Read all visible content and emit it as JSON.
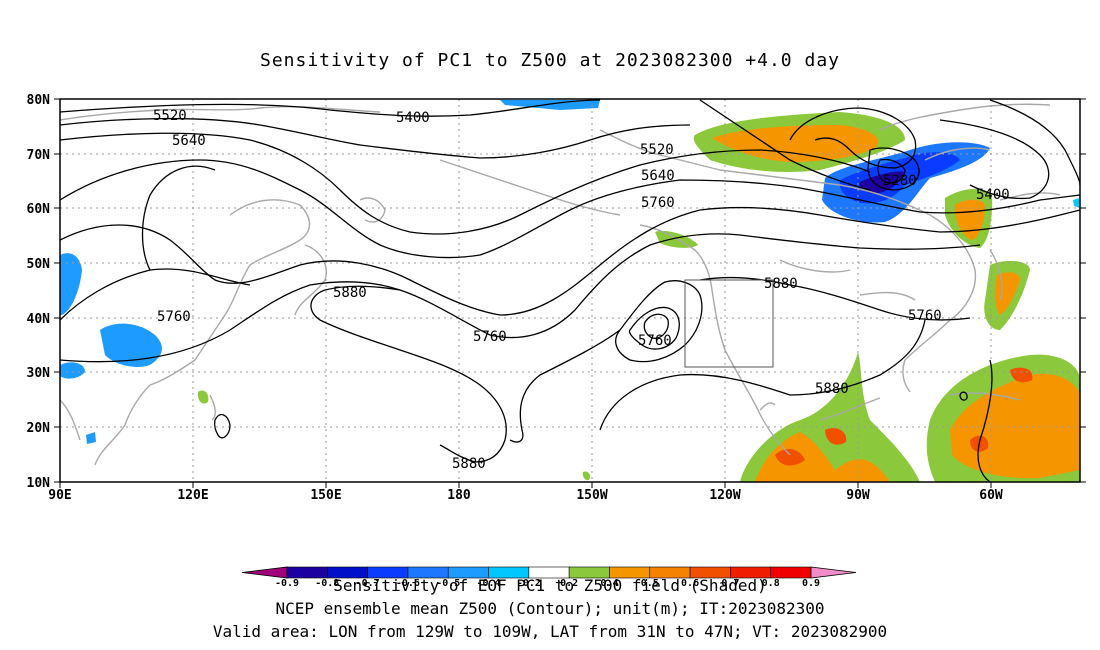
{
  "title": "Sensitivity of PC1 to Z500 at 2023082300 +4.0 day",
  "map": {
    "lon_ticks": [
      "90E",
      "120E",
      "150E",
      "180",
      "150W",
      "120W",
      "90W",
      "60W"
    ],
    "lat_ticks": [
      "80N",
      "70N",
      "60N",
      "50N",
      "40N",
      "30N",
      "20N",
      "10N"
    ],
    "contour_labels": [
      "5520",
      "5400",
      "5640",
      "5520",
      "5640",
      "5760",
      "5280",
      "5400",
      "5880",
      "5880",
      "5760",
      "5760",
      "5760",
      "5760",
      "5880",
      "5880"
    ],
    "valid_box": {
      "lon_from": "129W",
      "lon_to": "109W",
      "lat_from": "31N",
      "lat_to": "47N"
    }
  },
  "colorbar": {
    "levels": [
      "-0.9",
      "-0.8",
      "-0.7",
      "-0.6",
      "-0.5",
      "-0.4",
      "-0.2",
      "0.2",
      "0.4",
      "0.5",
      "0.6",
      "0.7",
      "0.8",
      "0.9"
    ],
    "colors": [
      "#a0007a",
      "#1c00a0",
      "#0010c8",
      "#0a3cff",
      "#1e78ff",
      "#1e9bff",
      "#00c8ff",
      "#ffffff",
      "#8cc83c",
      "#f59600",
      "#f58200",
      "#f05000",
      "#f01e00",
      "#f00000",
      "#f08cc8"
    ]
  },
  "captions": {
    "line1": "Sensitivity of EOF PC1 to Z500 field (Shaded)",
    "line2": "NCEP ensemble mean Z500 (Contour); unit(m); IT:2023082300",
    "line3": "Valid area: LON from 129W to 109W, LAT from 31N to 47N; VT: 2023082900"
  }
}
